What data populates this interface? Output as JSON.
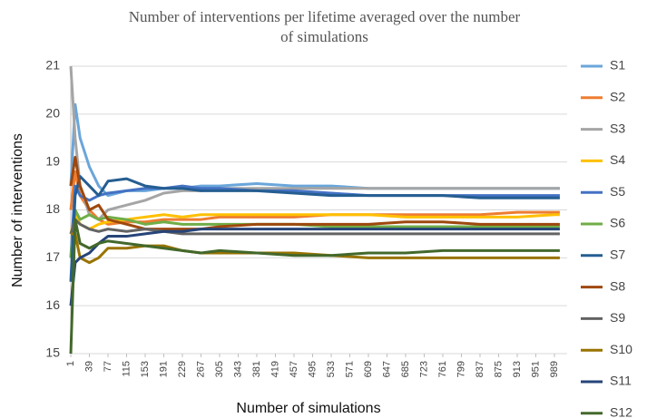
{
  "chart_data": {
    "type": "line",
    "title": "Number of interventions per lifetime averaged over the number of simulations",
    "x_label": "Number of simulations",
    "y_label": "Number of interventions",
    "x": [
      1,
      10,
      20,
      39,
      58,
      77,
      115,
      153,
      191,
      229,
      267,
      305,
      381,
      457,
      533,
      609,
      685,
      761,
      837,
      913,
      989,
      1000
    ],
    "xlim": [
      1,
      1015
    ],
    "xticks": [
      1,
      39,
      77,
      115,
      153,
      191,
      229,
      267,
      305,
      343,
      381,
      419,
      457,
      495,
      533,
      571,
      609,
      647,
      685,
      723,
      761,
      799,
      837,
      875,
      913,
      951,
      989
    ],
    "ylim": [
      15,
      21
    ],
    "yticks": [
      15,
      16,
      17,
      18,
      19,
      20,
      21
    ],
    "grid": true,
    "legend": "right",
    "series": [
      {
        "name": "S1",
        "color": "#6aa6da",
        "values": [
          18.5,
          20.2,
          19.5,
          18.9,
          18.5,
          18.3,
          18.4,
          18.4,
          18.45,
          18.45,
          18.5,
          18.5,
          18.55,
          18.5,
          18.5,
          18.45,
          18.45,
          18.45,
          18.45,
          18.45,
          18.45,
          18.45
        ]
      },
      {
        "name": "S2",
        "color": "#ed7d31",
        "values": [
          18.0,
          18.8,
          18.3,
          18.0,
          17.8,
          17.7,
          17.75,
          17.75,
          17.8,
          17.8,
          17.8,
          17.85,
          17.85,
          17.85,
          17.9,
          17.9,
          17.9,
          17.9,
          17.9,
          17.95,
          17.95,
          17.95
        ]
      },
      {
        "name": "S3",
        "color": "#a5a5a5",
        "values": [
          21.0,
          19.5,
          18.5,
          17.9,
          17.8,
          18.0,
          18.1,
          18.2,
          18.35,
          18.4,
          18.4,
          18.45,
          18.45,
          18.45,
          18.45,
          18.45,
          18.45,
          18.45,
          18.45,
          18.45,
          18.45,
          18.45
        ]
      },
      {
        "name": "S4",
        "color": "#ffc000",
        "values": [
          17.5,
          17.9,
          17.7,
          17.6,
          17.7,
          17.75,
          17.8,
          17.85,
          17.9,
          17.85,
          17.9,
          17.9,
          17.9,
          17.9,
          17.9,
          17.9,
          17.85,
          17.85,
          17.85,
          17.85,
          17.9,
          17.9
        ]
      },
      {
        "name": "S5",
        "color": "#4472c4",
        "values": [
          17.0,
          18.5,
          18.3,
          18.2,
          18.3,
          18.35,
          18.4,
          18.45,
          18.45,
          18.5,
          18.45,
          18.45,
          18.4,
          18.4,
          18.35,
          18.3,
          18.3,
          18.3,
          18.3,
          18.3,
          18.3,
          18.3
        ]
      },
      {
        "name": "S6",
        "color": "#70ad47",
        "values": [
          17.0,
          18.0,
          17.8,
          17.9,
          17.8,
          17.85,
          17.8,
          17.7,
          17.75,
          17.7,
          17.7,
          17.7,
          17.7,
          17.7,
          17.65,
          17.65,
          17.65,
          17.65,
          17.65,
          17.65,
          17.65,
          17.65
        ]
      },
      {
        "name": "S7",
        "color": "#255e91",
        "values": [
          16.5,
          18.3,
          18.7,
          18.5,
          18.3,
          18.6,
          18.65,
          18.5,
          18.45,
          18.45,
          18.4,
          18.4,
          18.4,
          18.35,
          18.3,
          18.3,
          18.3,
          18.3,
          18.25,
          18.25,
          18.25,
          18.25
        ]
      },
      {
        "name": "S8",
        "color": "#9e480e",
        "values": [
          18.5,
          19.1,
          18.5,
          18.0,
          18.1,
          17.8,
          17.7,
          17.6,
          17.6,
          17.6,
          17.6,
          17.65,
          17.7,
          17.7,
          17.7,
          17.7,
          17.75,
          17.75,
          17.7,
          17.7,
          17.7,
          17.7
        ]
      },
      {
        "name": "S9",
        "color": "#636363",
        "values": [
          17.5,
          17.8,
          17.7,
          17.6,
          17.55,
          17.6,
          17.55,
          17.6,
          17.55,
          17.5,
          17.5,
          17.5,
          17.5,
          17.5,
          17.5,
          17.5,
          17.5,
          17.5,
          17.5,
          17.5,
          17.5,
          17.5
        ]
      },
      {
        "name": "S10",
        "color": "#997300",
        "values": [
          17.5,
          17.5,
          17.0,
          16.9,
          17.0,
          17.2,
          17.2,
          17.25,
          17.25,
          17.15,
          17.1,
          17.1,
          17.1,
          17.1,
          17.05,
          17.0,
          17.0,
          17.0,
          17.0,
          17.0,
          17.0,
          17.0
        ]
      },
      {
        "name": "S11",
        "color": "#264478",
        "values": [
          16.0,
          16.9,
          17.0,
          17.1,
          17.3,
          17.45,
          17.45,
          17.5,
          17.55,
          17.55,
          17.6,
          17.6,
          17.6,
          17.6,
          17.6,
          17.6,
          17.6,
          17.6,
          17.6,
          17.6,
          17.6,
          17.6
        ]
      },
      {
        "name": "S12",
        "color": "#43682b",
        "values": [
          15.0,
          17.8,
          17.3,
          17.2,
          17.3,
          17.35,
          17.3,
          17.25,
          17.2,
          17.15,
          17.1,
          17.15,
          17.1,
          17.05,
          17.05,
          17.1,
          17.1,
          17.15,
          17.15,
          17.15,
          17.15,
          17.15
        ]
      }
    ]
  }
}
